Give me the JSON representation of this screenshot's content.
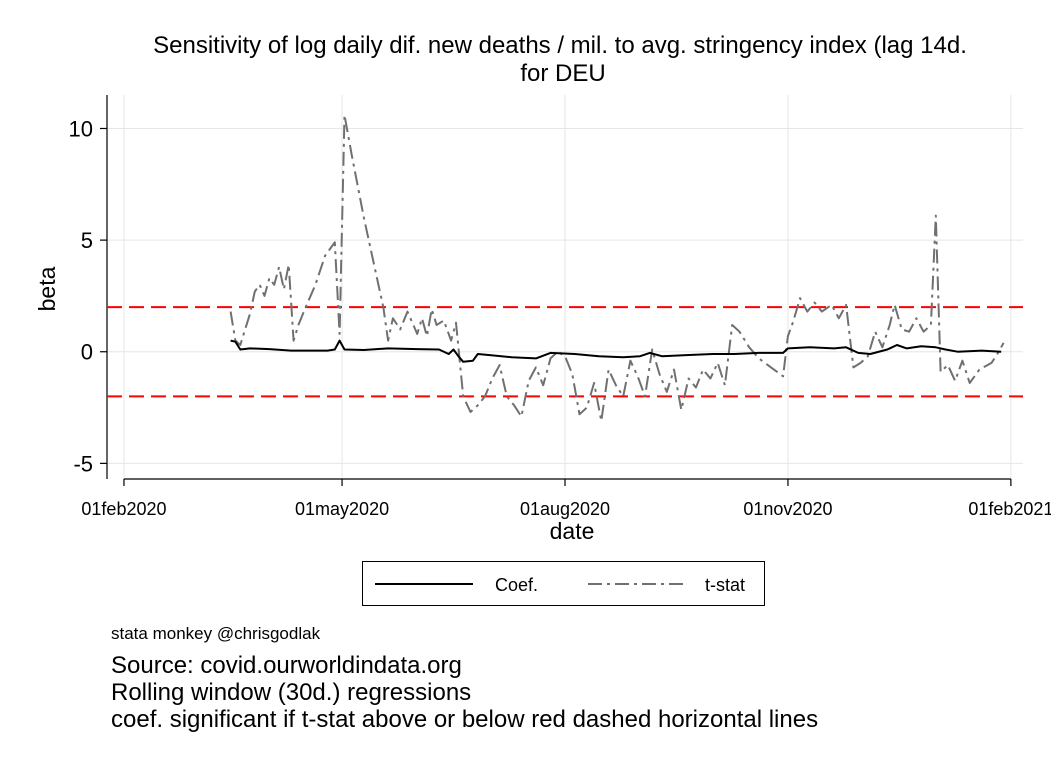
{
  "chart_data": {
    "type": "line",
    "title": "Sensitivity of log daily dif. new deaths / mil. to avg. stringency index (lag 14d.",
    "subtitle": "for DEU",
    "xlabel": "date",
    "ylabel": "beta",
    "x_ticks": [
      "01feb2020",
      "01may2020",
      "01aug2020",
      "01nov2020",
      "01feb2021"
    ],
    "y_ticks": [
      10,
      5,
      0,
      -5
    ],
    "xlim": [
      "2020-01-25",
      "2021-02-06"
    ],
    "ylim": [
      -5.7,
      11.5
    ],
    "grid": true,
    "reference_lines": [
      2,
      -2
    ],
    "reference_line_color": "#ff0000",
    "legend_position": "bottom",
    "series": [
      {
        "name": "Coef.",
        "style": "solid",
        "color": "#000000",
        "points": [
          [
            "2020-03-16",
            0.5
          ],
          [
            "2020-03-18",
            0.45
          ],
          [
            "2020-03-20",
            0.1
          ],
          [
            "2020-03-24",
            0.15
          ],
          [
            "2020-04-01",
            0.12
          ],
          [
            "2020-04-10",
            0.05
          ],
          [
            "2020-04-25",
            0.05
          ],
          [
            "2020-04-28",
            0.1
          ],
          [
            "2020-04-30",
            0.5
          ],
          [
            "2020-05-02",
            0.1
          ],
          [
            "2020-05-10",
            0.08
          ],
          [
            "2020-05-20",
            0.15
          ],
          [
            "2020-06-01",
            0.12
          ],
          [
            "2020-06-10",
            0.1
          ],
          [
            "2020-06-14",
            -0.1
          ],
          [
            "2020-06-16",
            0.1
          ],
          [
            "2020-06-18",
            -0.2
          ],
          [
            "2020-06-20",
            -0.45
          ],
          [
            "2020-06-24",
            -0.4
          ],
          [
            "2020-06-26",
            -0.1
          ],
          [
            "2020-07-01",
            -0.15
          ],
          [
            "2020-07-10",
            -0.25
          ],
          [
            "2020-07-20",
            -0.3
          ],
          [
            "2020-07-26",
            -0.05
          ],
          [
            "2020-08-05",
            -0.1
          ],
          [
            "2020-08-15",
            -0.2
          ],
          [
            "2020-08-25",
            -0.25
          ],
          [
            "2020-09-01",
            -0.2
          ],
          [
            "2020-09-05",
            -0.05
          ],
          [
            "2020-09-10",
            -0.2
          ],
          [
            "2020-09-20",
            -0.15
          ],
          [
            "2020-10-01",
            -0.1
          ],
          [
            "2020-10-10",
            -0.1
          ],
          [
            "2020-10-20",
            -0.05
          ],
          [
            "2020-10-30",
            -0.05
          ],
          [
            "2020-11-01",
            0.15
          ],
          [
            "2020-11-10",
            0.2
          ],
          [
            "2020-11-20",
            0.15
          ],
          [
            "2020-11-25",
            0.2
          ],
          [
            "2020-11-30",
            -0.05
          ],
          [
            "2020-12-05",
            -0.1
          ],
          [
            "2020-12-12",
            0.1
          ],
          [
            "2020-12-16",
            0.3
          ],
          [
            "2020-12-20",
            0.15
          ],
          [
            "2020-12-26",
            0.25
          ],
          [
            "2021-01-01",
            0.2
          ],
          [
            "2021-01-05",
            0.1
          ],
          [
            "2021-01-10",
            0.0
          ],
          [
            "2021-01-20",
            0.05
          ],
          [
            "2021-01-28",
            0.0
          ]
        ]
      },
      {
        "name": "t-stat",
        "style": "dash-dot",
        "color": "#707070",
        "points": [
          [
            "2020-03-16",
            1.8
          ],
          [
            "2020-03-18",
            0.5
          ],
          [
            "2020-03-20",
            0.3
          ],
          [
            "2020-03-22",
            1.0
          ],
          [
            "2020-03-24",
            1.7
          ],
          [
            "2020-03-26",
            2.7
          ],
          [
            "2020-03-28",
            3.0
          ],
          [
            "2020-03-30",
            2.5
          ],
          [
            "2020-04-01",
            3.3
          ],
          [
            "2020-04-03",
            3.0
          ],
          [
            "2020-04-05",
            3.8
          ],
          [
            "2020-04-07",
            2.8
          ],
          [
            "2020-04-09",
            3.9
          ],
          [
            "2020-04-11",
            0.5
          ],
          [
            "2020-04-13",
            1.2
          ],
          [
            "2020-04-16",
            2.0
          ],
          [
            "2020-04-20",
            3.0
          ],
          [
            "2020-04-24",
            4.3
          ],
          [
            "2020-04-28",
            4.9
          ],
          [
            "2020-04-30",
            0.8
          ],
          [
            "2020-05-02",
            10.6
          ],
          [
            "2020-05-05",
            8.8
          ],
          [
            "2020-05-10",
            6.0
          ],
          [
            "2020-05-15",
            3.5
          ],
          [
            "2020-05-18",
            2.0
          ],
          [
            "2020-05-20",
            0.5
          ],
          [
            "2020-05-22",
            1.5
          ],
          [
            "2020-05-25",
            1.0
          ],
          [
            "2020-05-28",
            1.8
          ],
          [
            "2020-06-01",
            0.8
          ],
          [
            "2020-06-03",
            1.5
          ],
          [
            "2020-06-05",
            0.7
          ],
          [
            "2020-06-07",
            1.9
          ],
          [
            "2020-06-09",
            1.2
          ],
          [
            "2020-06-12",
            1.4
          ],
          [
            "2020-06-15",
            0.5
          ],
          [
            "2020-06-17",
            1.3
          ],
          [
            "2020-06-20",
            -2.0
          ],
          [
            "2020-06-23",
            -2.7
          ],
          [
            "2020-06-26",
            -2.4
          ],
          [
            "2020-06-29",
            -2.0
          ],
          [
            "2020-07-02",
            -1.2
          ],
          [
            "2020-07-05",
            -0.6
          ],
          [
            "2020-07-08",
            -2.0
          ],
          [
            "2020-07-11",
            -2.4
          ],
          [
            "2020-07-14",
            -2.9
          ],
          [
            "2020-07-17",
            -1.3
          ],
          [
            "2020-07-20",
            -0.7
          ],
          [
            "2020-07-23",
            -1.5
          ],
          [
            "2020-07-26",
            -0.3
          ],
          [
            "2020-07-29",
            0.0
          ],
          [
            "2020-08-01",
            -0.2
          ],
          [
            "2020-08-04",
            -1.0
          ],
          [
            "2020-08-07",
            -2.8
          ],
          [
            "2020-08-10",
            -2.5
          ],
          [
            "2020-08-13",
            -1.4
          ],
          [
            "2020-08-16",
            -3.1
          ],
          [
            "2020-08-19",
            -0.8
          ],
          [
            "2020-08-22",
            -1.5
          ],
          [
            "2020-08-25",
            -2.0
          ],
          [
            "2020-08-28",
            -0.4
          ],
          [
            "2020-08-31",
            -1.1
          ],
          [
            "2020-09-03",
            -2.0
          ],
          [
            "2020-09-06",
            0.1
          ],
          [
            "2020-09-09",
            -1.0
          ],
          [
            "2020-09-12",
            -1.8
          ],
          [
            "2020-09-15",
            -0.8
          ],
          [
            "2020-09-18",
            -2.6
          ],
          [
            "2020-09-21",
            -1.2
          ],
          [
            "2020-09-24",
            -1.6
          ],
          [
            "2020-09-27",
            -0.8
          ],
          [
            "2020-09-30",
            -1.2
          ],
          [
            "2020-10-03",
            -0.5
          ],
          [
            "2020-10-06",
            -1.5
          ],
          [
            "2020-10-09",
            1.2
          ],
          [
            "2020-10-12",
            0.9
          ],
          [
            "2020-10-16",
            0.2
          ],
          [
            "2020-10-20",
            -0.3
          ],
          [
            "2020-10-25",
            -0.7
          ],
          [
            "2020-10-30",
            -1.1
          ],
          [
            "2020-11-01",
            0.7
          ],
          [
            "2020-11-03",
            1.3
          ],
          [
            "2020-11-06",
            2.4
          ],
          [
            "2020-11-09",
            1.8
          ],
          [
            "2020-11-12",
            2.2
          ],
          [
            "2020-11-15",
            1.8
          ],
          [
            "2020-11-19",
            2.1
          ],
          [
            "2020-11-22",
            1.5
          ],
          [
            "2020-11-25",
            2.1
          ],
          [
            "2020-11-28",
            -0.7
          ],
          [
            "2020-12-01",
            -0.5
          ],
          [
            "2020-12-04",
            -0.2
          ],
          [
            "2020-12-07",
            0.9
          ],
          [
            "2020-12-10",
            0.2
          ],
          [
            "2020-12-13",
            1.2
          ],
          [
            "2020-12-15",
            2.1
          ],
          [
            "2020-12-18",
            1.0
          ],
          [
            "2020-12-21",
            0.9
          ],
          [
            "2020-12-24",
            1.5
          ],
          [
            "2020-12-27",
            0.9
          ],
          [
            "2020-12-30",
            1.2
          ],
          [
            "2021-01-01",
            6.1
          ],
          [
            "2021-01-03",
            -0.9
          ],
          [
            "2021-01-06",
            -0.6
          ],
          [
            "2021-01-09",
            -1.3
          ],
          [
            "2021-01-12",
            -0.4
          ],
          [
            "2021-01-15",
            -1.4
          ],
          [
            "2021-01-19",
            -0.8
          ],
          [
            "2021-01-24",
            -0.5
          ],
          [
            "2021-01-27",
            0.0
          ],
          [
            "2021-01-29",
            0.4
          ]
        ]
      }
    ]
  },
  "footer": {
    "credit": "stata monkey @chrisgodlak",
    "source": "Source: covid.ourworldindata.org",
    "note1": "Rolling window (30d.) regressions",
    "note2": "coef. significant if t-stat above or below red dashed horizontal lines"
  }
}
